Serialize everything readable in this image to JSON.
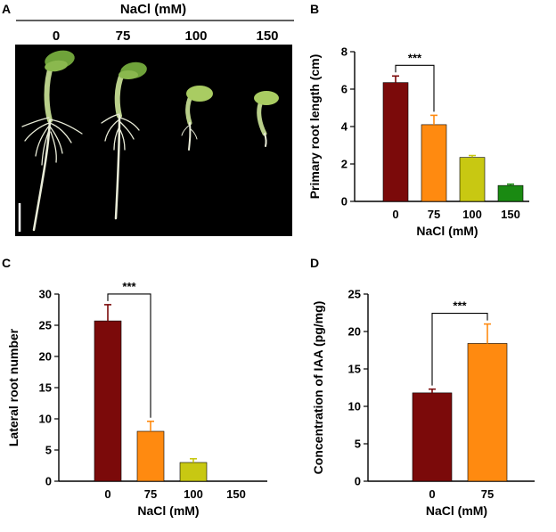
{
  "panelA": {
    "label": "A",
    "header": "NaCl (mM)",
    "conditions": [
      "0",
      "75",
      "100",
      "150"
    ],
    "colors": {
      "background": "#000000",
      "stem": "#b9cf8a",
      "cotyledon": "#6fa23a",
      "root": "#e9ecd8"
    }
  },
  "chart_data": [
    {
      "panel": "B",
      "type": "bar",
      "title": "",
      "xlabel": "NaCl (mM)",
      "ylabel": "Primary root length (cm)",
      "categories": [
        "0",
        "75",
        "100",
        "150"
      ],
      "values": [
        6.35,
        4.1,
        2.35,
        0.85
      ],
      "errors": [
        0.35,
        0.5,
        0.1,
        0.07
      ],
      "colors": [
        "#7b0a0a",
        "#ff8a10",
        "#c8c812",
        "#1a8a12"
      ],
      "ylim": [
        0,
        8
      ],
      "yticks": [
        0,
        2,
        4,
        6,
        8
      ],
      "significance": {
        "from": 0,
        "to": 1,
        "label": "***"
      }
    },
    {
      "panel": "C",
      "type": "bar",
      "title": "",
      "xlabel": "NaCl (mM)",
      "ylabel": "Lateral root number",
      "categories": [
        "0",
        "75",
        "100",
        "150"
      ],
      "values": [
        25.7,
        8.0,
        3.0,
        0
      ],
      "errors": [
        2.6,
        1.6,
        0.6,
        0
      ],
      "colors": [
        "#7b0a0a",
        "#ff8a10",
        "#c8c812",
        "#1a8a12"
      ],
      "ylim": [
        0,
        30
      ],
      "yticks": [
        0,
        5,
        10,
        15,
        20,
        25,
        30
      ],
      "significance": {
        "from": 0,
        "to": 1,
        "label": "***"
      }
    },
    {
      "panel": "D",
      "type": "bar",
      "title": "",
      "xlabel": "NaCl (mM)",
      "ylabel": "Concentration of IAA (pg/mg)",
      "categories": [
        "0",
        "75"
      ],
      "values": [
        11.8,
        18.4
      ],
      "errors": [
        0.5,
        2.6
      ],
      "colors": [
        "#7b0a0a",
        "#ff8a10"
      ],
      "ylim": [
        0,
        25
      ],
      "yticks": [
        0,
        5,
        10,
        15,
        20,
        25
      ],
      "significance": {
        "from": 0,
        "to": 1,
        "label": "***"
      }
    }
  ]
}
